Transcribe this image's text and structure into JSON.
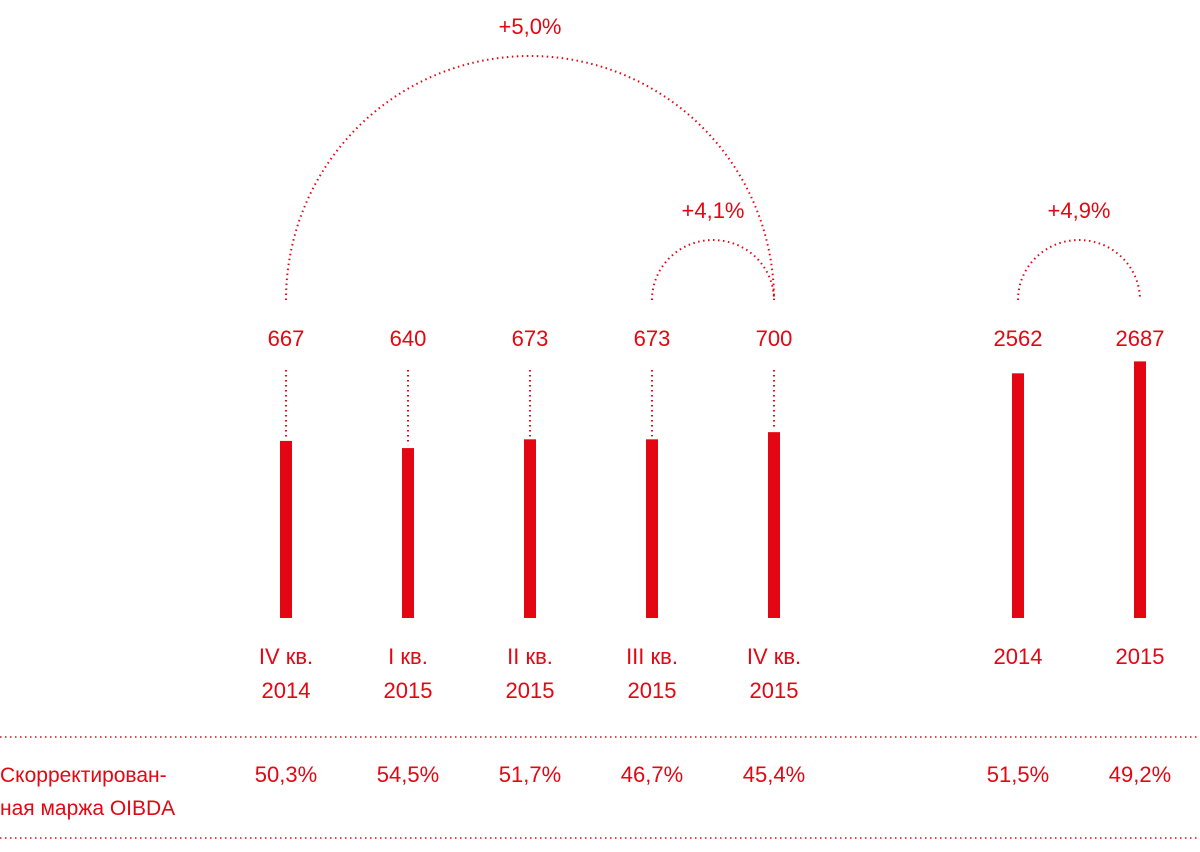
{
  "chart_data": [
    {
      "type": "bar",
      "categories": [
        {
          "line1": "IV кв.",
          "line2": "2014"
        },
        {
          "line1": "I кв.",
          "line2": "2015"
        },
        {
          "line1": "II кв.",
          "line2": "2015"
        },
        {
          "line1": "III кв.",
          "line2": "2015"
        },
        {
          "line1": "IV кв.",
          "line2": "2015"
        }
      ],
      "values": [
        667,
        640,
        673,
        673,
        700
      ],
      "value_labels": [
        "667",
        "640",
        "673",
        "673",
        "700"
      ],
      "margins": [
        "50,3%",
        "54,5%",
        "51,7%",
        "46,7%",
        "45,4%"
      ],
      "growth_annotations": [
        {
          "from": 0,
          "to": 4,
          "label": "+5,0%"
        },
        {
          "from": 3,
          "to": 4,
          "label": "+4,1%"
        }
      ]
    },
    {
      "type": "bar",
      "categories": [
        {
          "line1": "2014",
          "line2": ""
        },
        {
          "line1": "2015",
          "line2": ""
        }
      ],
      "values": [
        2562,
        2687
      ],
      "value_labels": [
        "2562",
        "2687"
      ],
      "margins": [
        "51,5%",
        "49,2%"
      ],
      "growth_annotations": [
        {
          "from": 0,
          "to": 1,
          "label": "+4,9%"
        }
      ]
    }
  ],
  "margin_row": {
    "label_line1": "Скорректирован-",
    "label_line2": "ная маржа OIBDA"
  },
  "colors": {
    "accent": "#e30613"
  }
}
